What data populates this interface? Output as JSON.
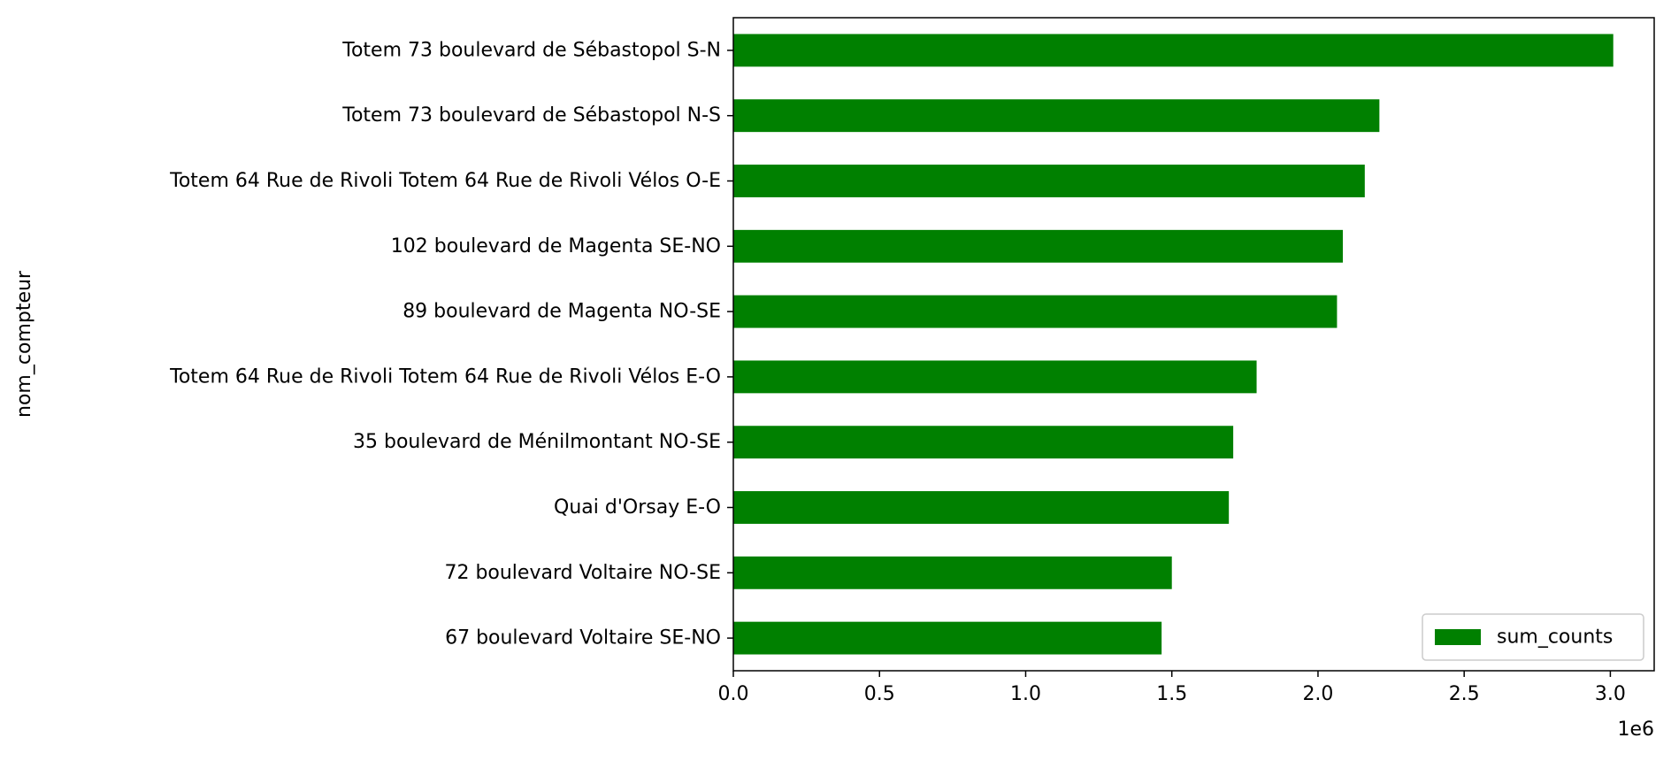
{
  "chart_data": {
    "type": "bar",
    "orientation": "horizontal",
    "title": "",
    "xlabel": "",
    "ylabel": "nom_compteur",
    "x_offset_label": "1e6",
    "xlim": [
      0,
      3150000
    ],
    "xticks": [
      0,
      500000,
      1000000,
      1500000,
      2000000,
      2500000,
      3000000
    ],
    "xtick_labels": [
      "0.0",
      "0.5",
      "1.0",
      "1.5",
      "2.0",
      "2.5",
      "3.0"
    ],
    "grid": false,
    "legend_position": "lower right",
    "colors": {
      "bar": "#008000"
    },
    "categories": [
      "Totem 73 boulevard de Sébastopol S-N",
      "Totem 73 boulevard de Sébastopol N-S",
      "Totem 64 Rue de Rivoli Totem 64 Rue de Rivoli Vélos O-E",
      "102 boulevard de Magenta SE-NO",
      "89 boulevard de Magenta NO-SE",
      "Totem 64 Rue de Rivoli Totem 64 Rue de Rivoli Vélos E-O",
      "35 boulevard de Ménilmontant NO-SE",
      "Quai d'Orsay E-O",
      "72 boulevard Voltaire NO-SE",
      "67 boulevard Voltaire SE-NO"
    ],
    "series": [
      {
        "name": "sum_counts",
        "values": [
          3010000,
          2210000,
          2160000,
          2085000,
          2065000,
          1790000,
          1710000,
          1695000,
          1500000,
          1465000
        ]
      }
    ]
  }
}
